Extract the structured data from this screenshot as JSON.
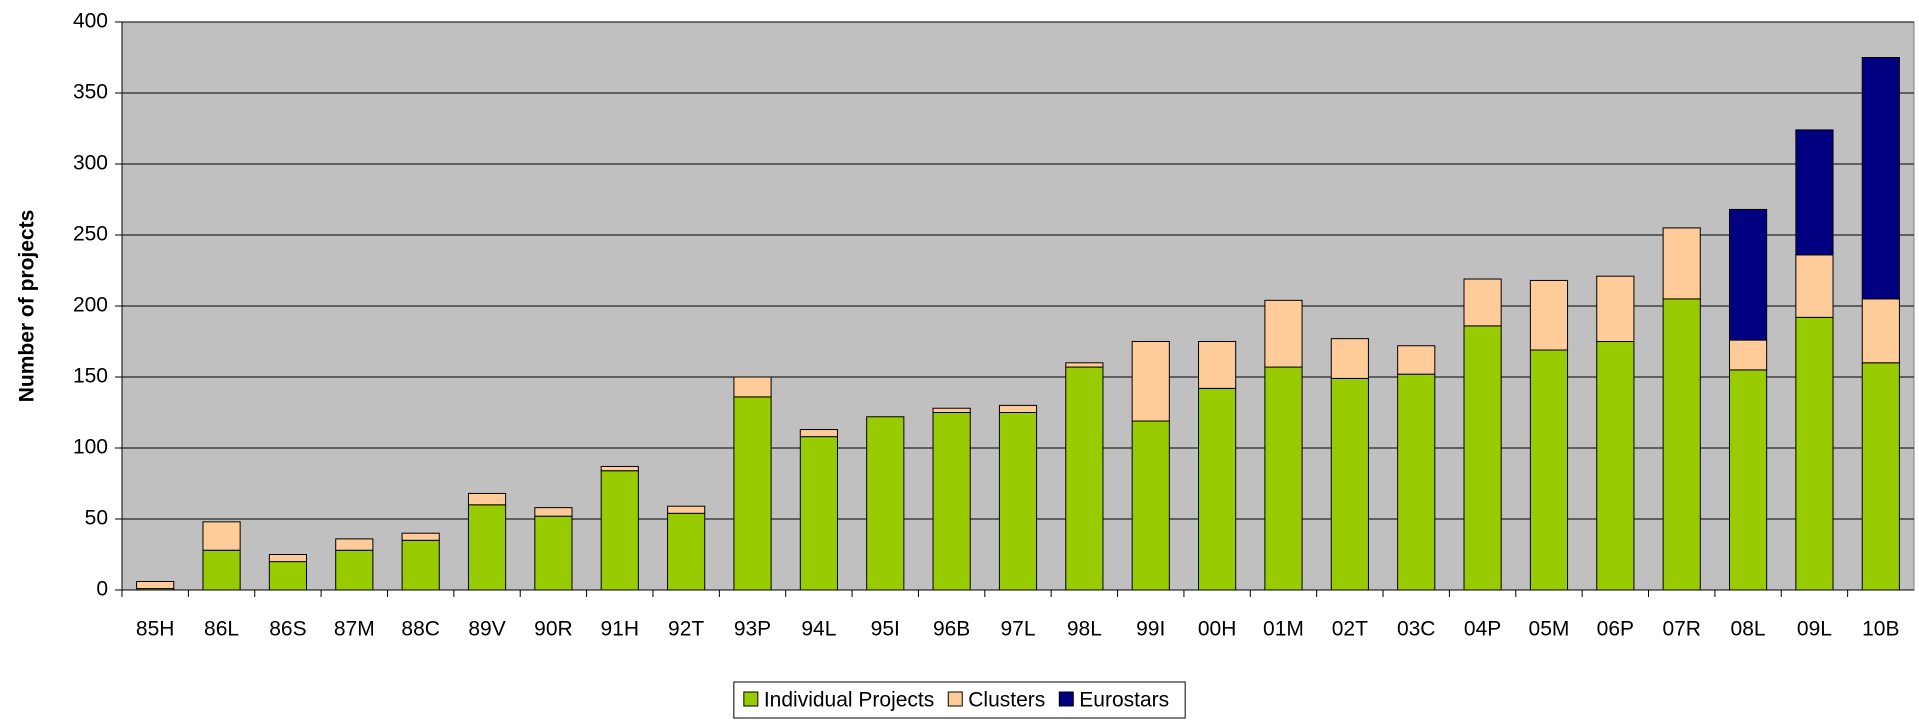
{
  "chart_data": {
    "type": "stacked_bar",
    "ylabel": "Number of projects",
    "categories": [
      "85H",
      "86L",
      "86S",
      "87M",
      "88C",
      "89V",
      "90R",
      "91H",
      "92T",
      "93P",
      "94L",
      "95I",
      "96B",
      "97L",
      "98L",
      "99I",
      "00H",
      "01M",
      "02T",
      "03C",
      "04P",
      "05M",
      "06P",
      "07R",
      "08L",
      "09L",
      "10B"
    ],
    "series": [
      {
        "name": "Individual Projects",
        "color": "#99cc00",
        "values": [
          1,
          28,
          20,
          28,
          35,
          60,
          52,
          84,
          54,
          136,
          108,
          122,
          125,
          125,
          157,
          119,
          142,
          157,
          149,
          152,
          186,
          169,
          175,
          205,
          155,
          192,
          160
        ]
      },
      {
        "name": "Clusters",
        "color": "#ffcc99",
        "values": [
          5,
          20,
          5,
          8,
          5,
          8,
          6,
          3,
          5,
          14,
          5,
          0,
          3,
          5,
          3,
          56,
          33,
          47,
          28,
          20,
          33,
          49,
          46,
          50,
          21,
          44,
          45
        ]
      },
      {
        "name": "Eurostars",
        "color": "#000080",
        "values": [
          0,
          0,
          0,
          0,
          0,
          0,
          0,
          0,
          0,
          0,
          0,
          0,
          0,
          0,
          0,
          0,
          0,
          0,
          0,
          0,
          0,
          0,
          0,
          0,
          92,
          88,
          170
        ]
      }
    ],
    "ylim": [
      0,
      400
    ],
    "yticks": [
      0,
      50,
      100,
      150,
      200,
      250,
      300,
      350,
      400
    ],
    "grid": true,
    "legend": "bottom"
  }
}
